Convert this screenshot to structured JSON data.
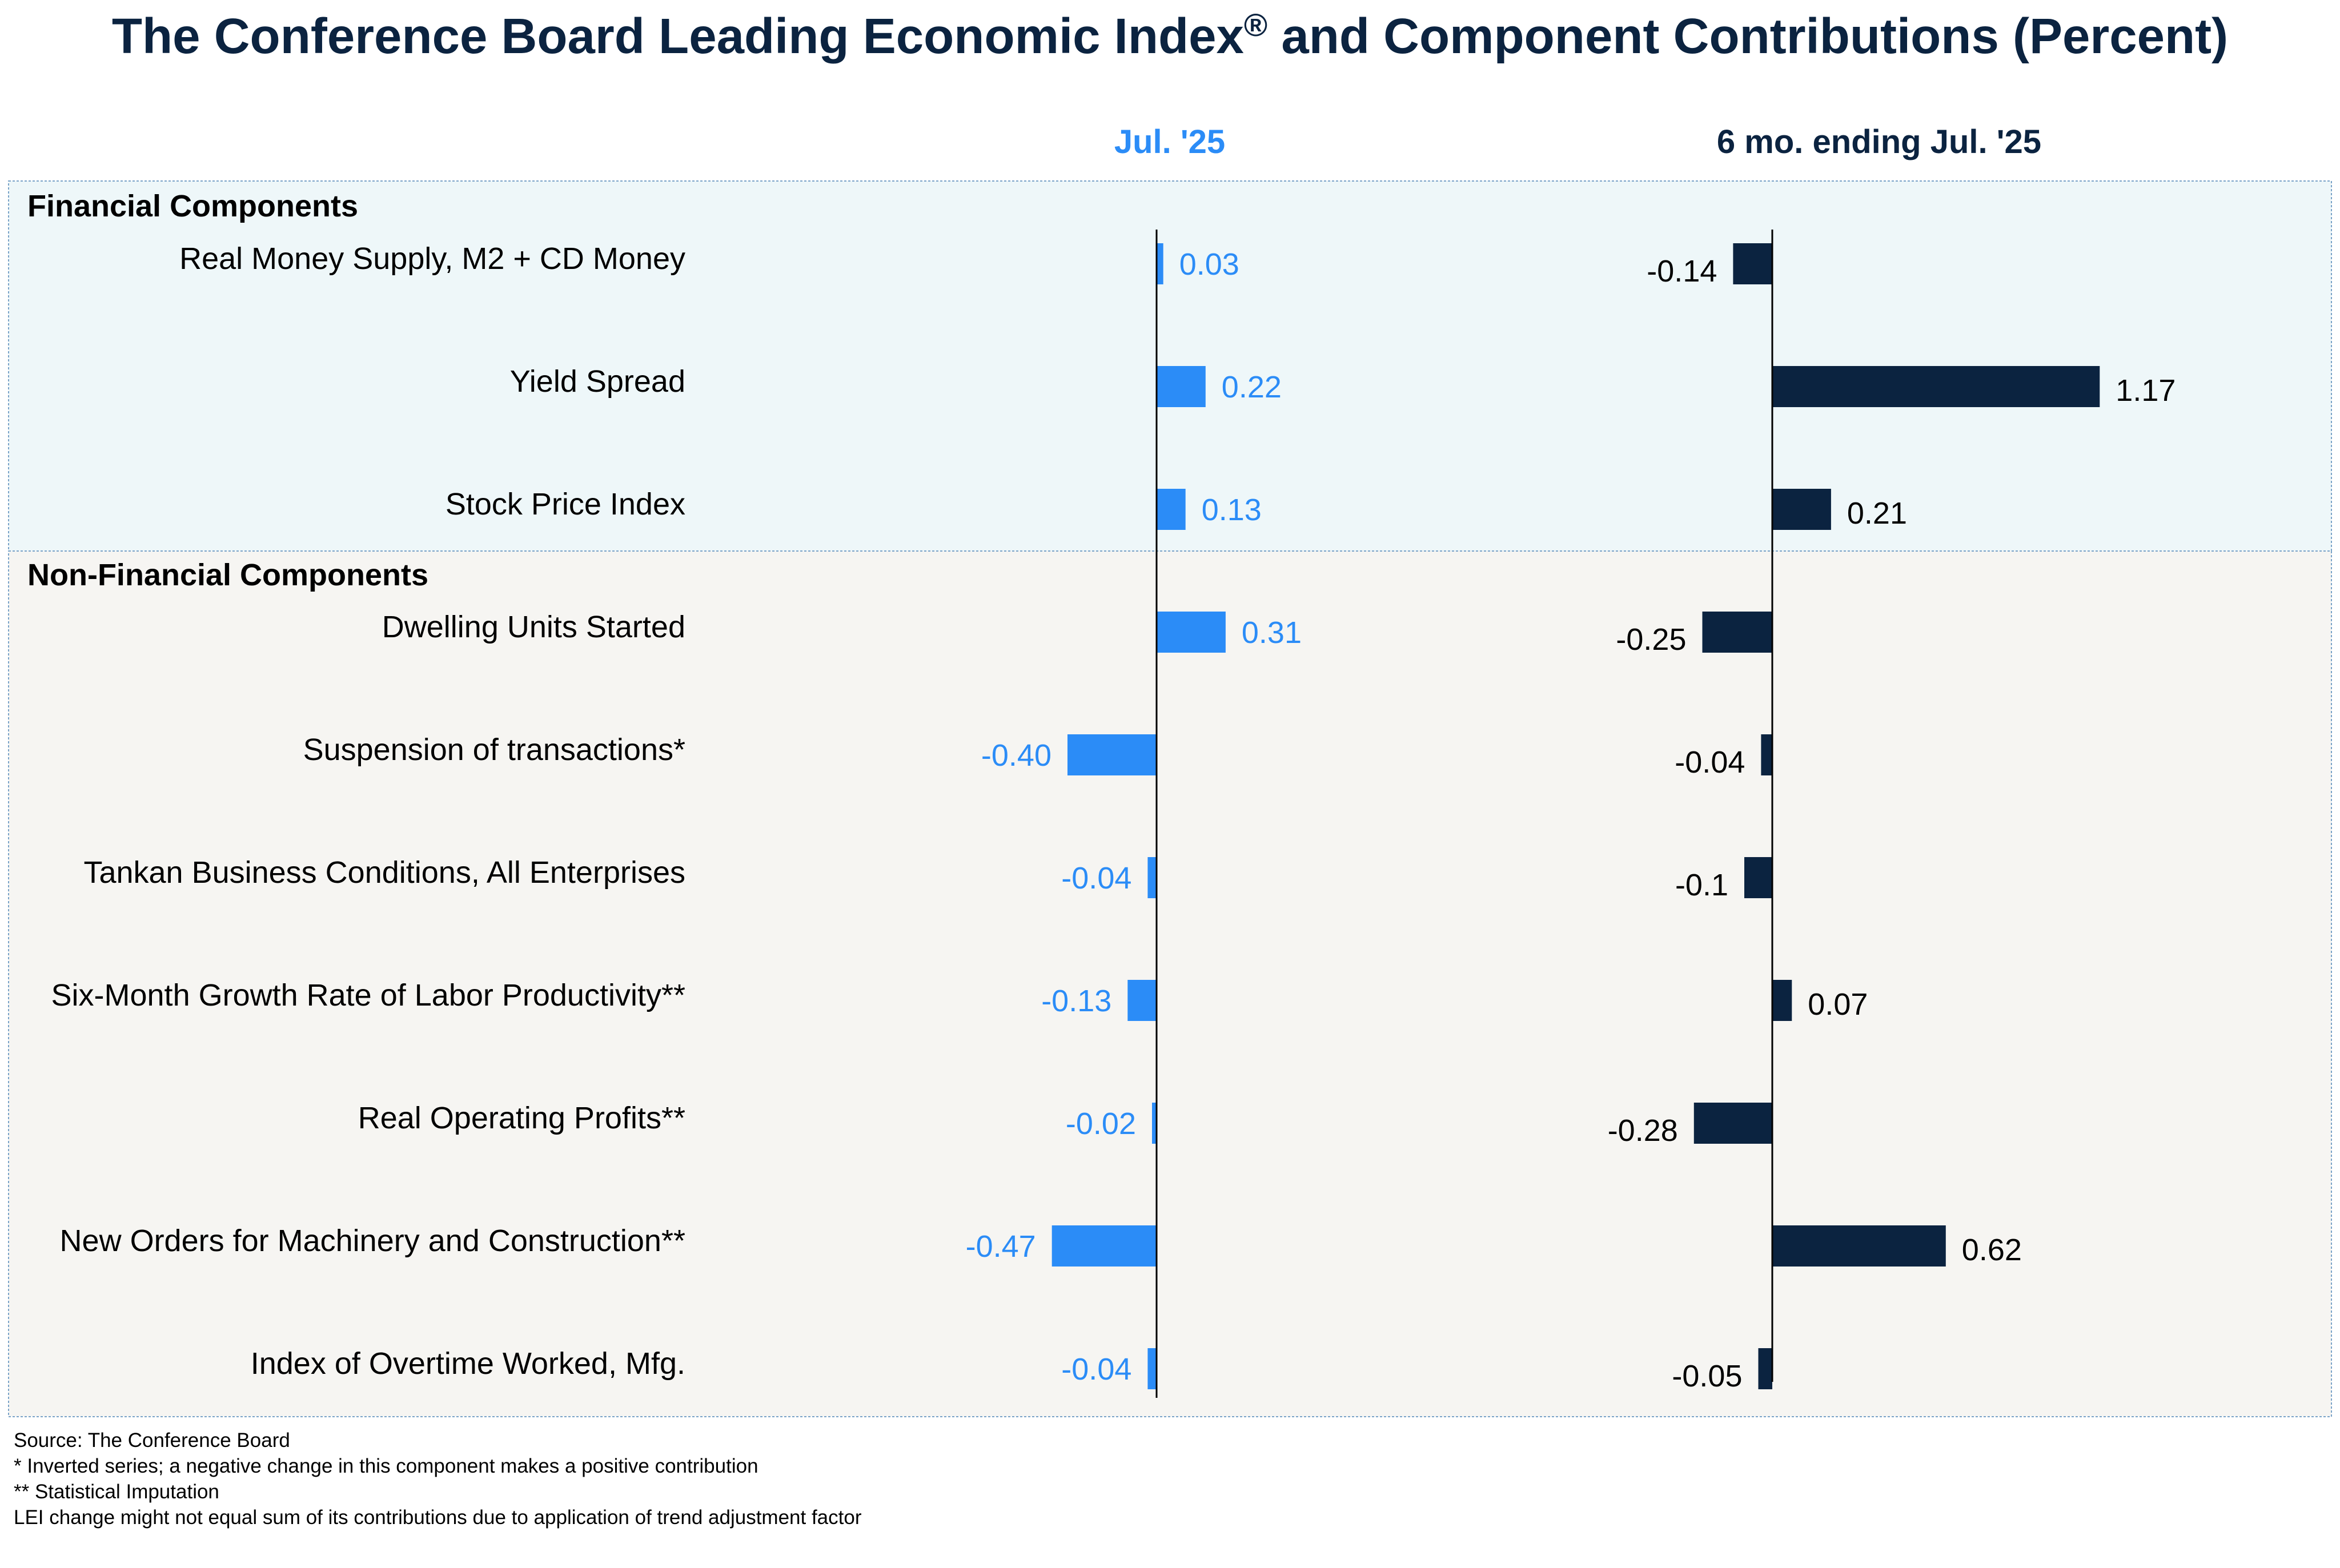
{
  "title": {
    "main": "The Conference Board Leading Economic Index",
    "registered_mark": "®",
    "rest": " and Component Contributions (Percent)"
  },
  "colors": {
    "title": "#0b2340",
    "jul_series": "#2b8cf7",
    "six_month_series": "#0b2340",
    "financial_bg": "#eef7f9",
    "nonfinancial_bg": "#f6f5f2",
    "section_border": "#7aa3c8"
  },
  "chart_data": {
    "type": "bar",
    "orientation": "horizontal",
    "columns": [
      {
        "name": "Jul. '25",
        "color": "#2b8cf7"
      },
      {
        "name": "6 mo. ending Jul. '25",
        "color": "#0b2340"
      }
    ],
    "sections": [
      {
        "name": "Financial Components",
        "rows": [
          {
            "label": "Real Money Supply, M2 + CD Money",
            "jul": 0.03,
            "six": -0.14,
            "jul_label": "0.03",
            "six_label": "-0.14"
          },
          {
            "label": "Yield Spread",
            "jul": 0.22,
            "six": 1.17,
            "jul_label": "0.22",
            "six_label": "1.17"
          },
          {
            "label": "Stock Price Index",
            "jul": 0.13,
            "six": 0.21,
            "jul_label": "0.13",
            "six_label": "0.21"
          }
        ]
      },
      {
        "name": "Non-Financial Components",
        "rows": [
          {
            "label": "Dwelling Units Started",
            "jul": 0.31,
            "six": -0.25,
            "jul_label": "0.31",
            "six_label": "-0.25"
          },
          {
            "label": "Suspension of transactions*",
            "jul": -0.4,
            "six": -0.04,
            "jul_label": "-0.40",
            "six_label": "-0.04"
          },
          {
            "label": "Tankan Business Conditions, All Enterprises",
            "jul": -0.04,
            "six": -0.1,
            "jul_label": "-0.04",
            "six_label": "-0.1"
          },
          {
            "label": "Six-Month Growth Rate of Labor Productivity**",
            "jul": -0.13,
            "six": 0.07,
            "jul_label": "-0.13",
            "six_label": "0.07"
          },
          {
            "label": "Real Operating Profits**",
            "jul": -0.02,
            "six": -0.28,
            "jul_label": "-0.02",
            "six_label": "-0.28"
          },
          {
            "label": "New Orders for Machinery and Construction**",
            "jul": -0.47,
            "six": 0.62,
            "jul_label": "-0.47",
            "six_label": "0.62"
          },
          {
            "label": "Index of Overtime Worked, Mfg.",
            "jul": -0.04,
            "six": -0.05,
            "jul_label": "-0.04",
            "six_label": "-0.05"
          }
        ]
      }
    ]
  },
  "footnotes": [
    "Source: The Conference Board",
    "*  Inverted series; a negative  change in this component  makes a positive contribution",
    "** Statistical Imputation",
    "LEI change might not equal sum of its contributions due to application of trend adjustment  factor"
  ]
}
